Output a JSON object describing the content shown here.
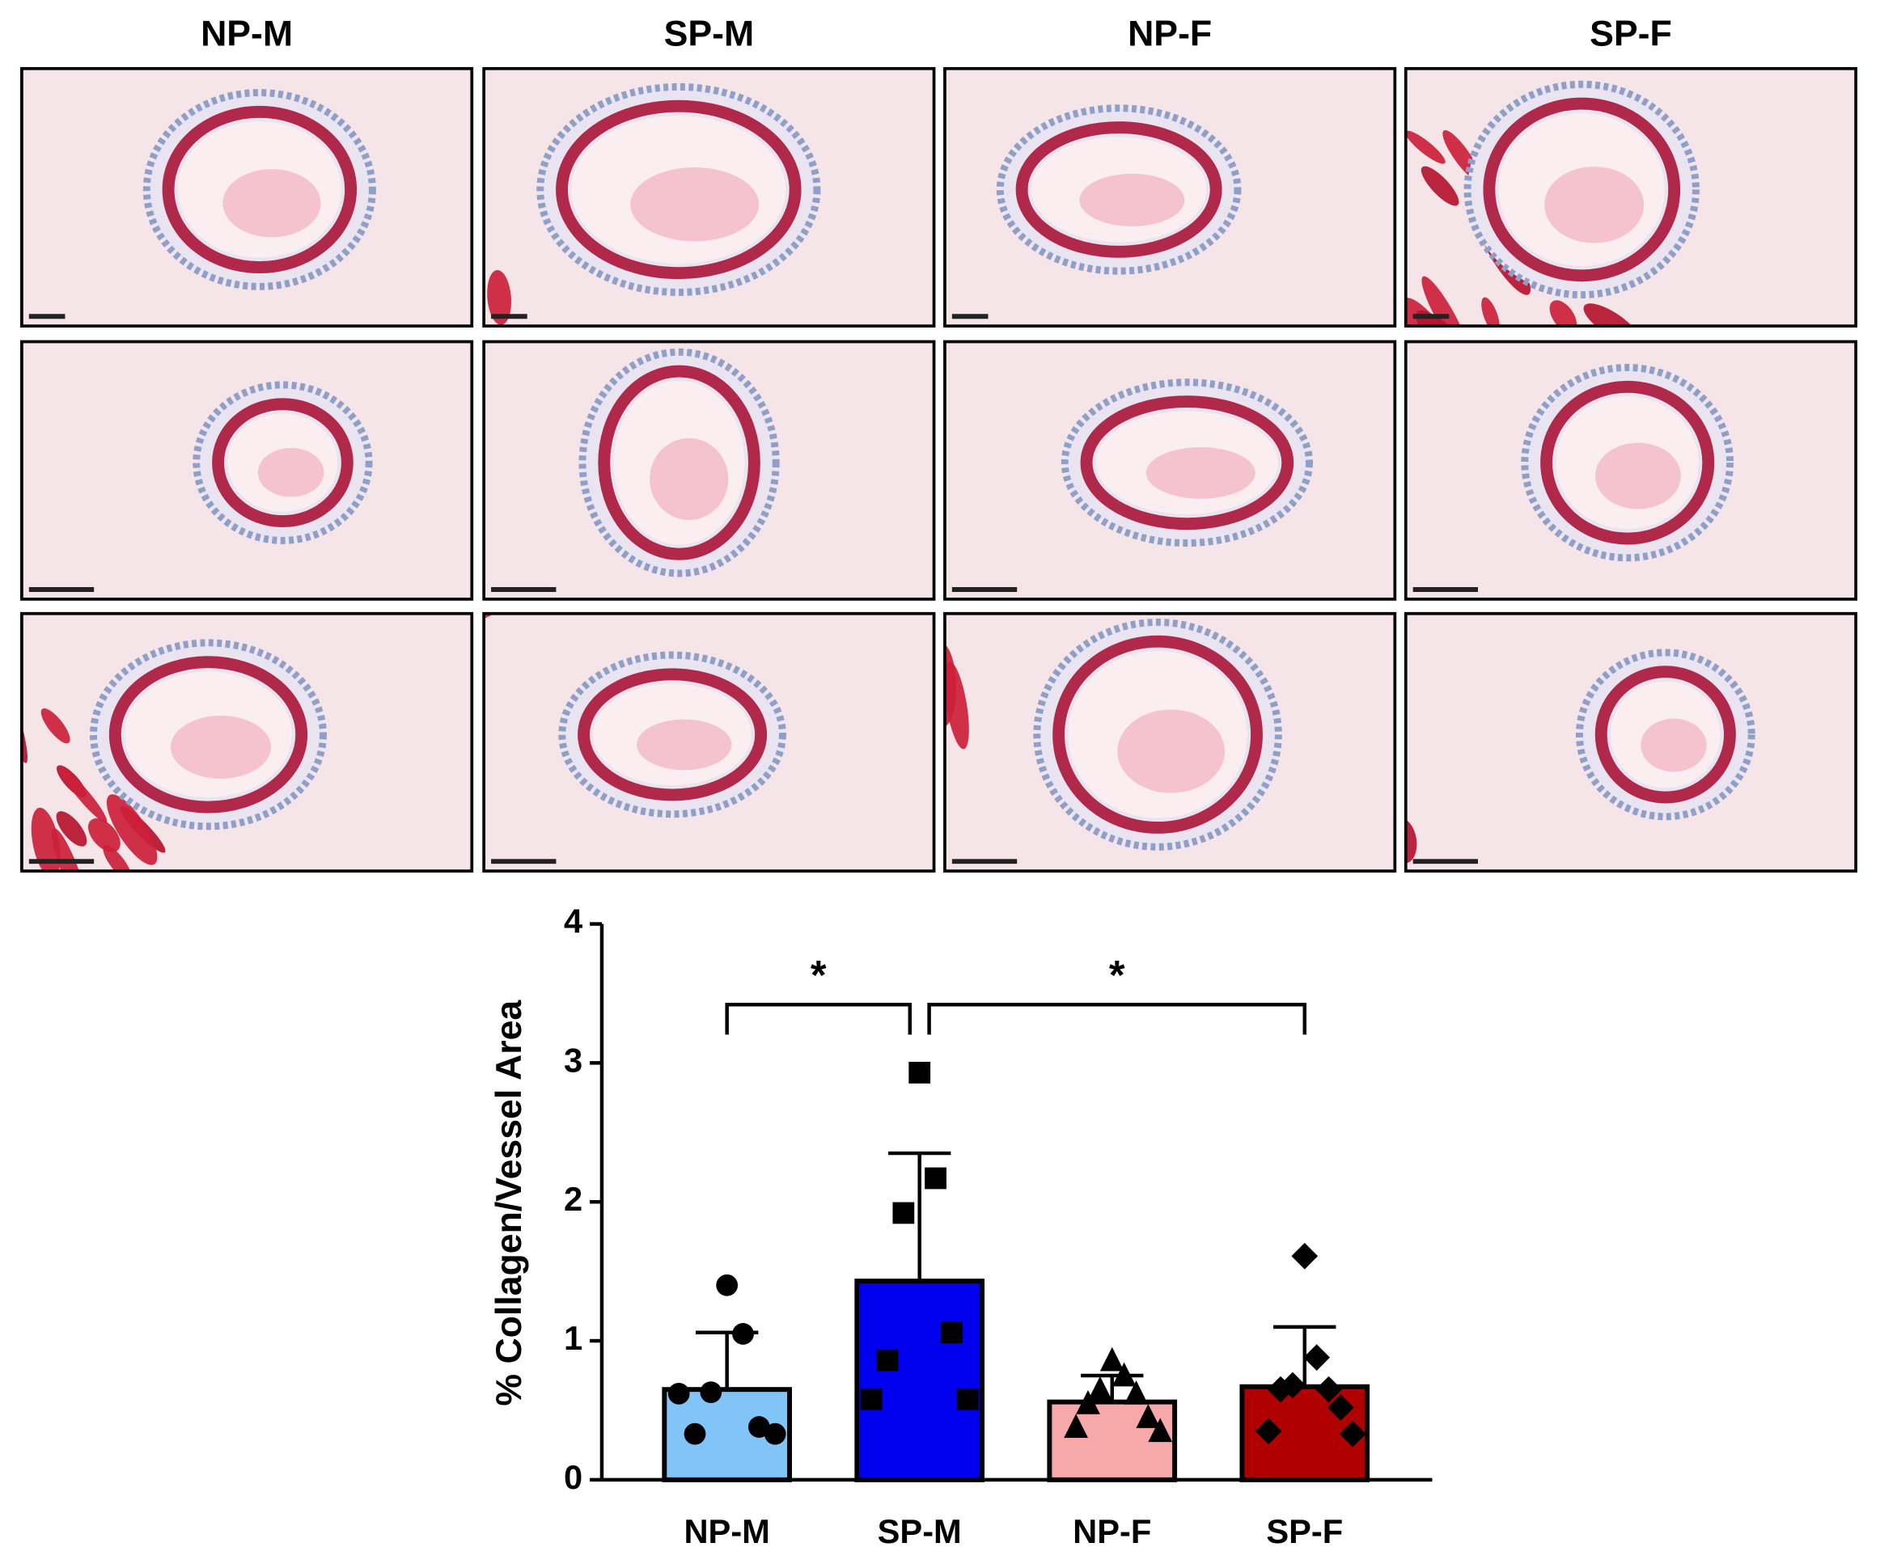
{
  "image_panels": {
    "columns": [
      "NP-M",
      "SP-M",
      "NP-F",
      "SP-F"
    ]
  },
  "chart_data": {
    "type": "bar",
    "ylabel": "% Collagen/Vessel Area",
    "categories": [
      "NP-M",
      "SP-M",
      "NP-F",
      "SP-F"
    ],
    "values": [
      0.65,
      1.43,
      0.56,
      0.67
    ],
    "errors": [
      0.41,
      0.92,
      0.19,
      0.43
    ],
    "colors": [
      "#80c4f8",
      "#0000ee",
      "#f7a8a8",
      "#b00000"
    ],
    "markers": [
      "circle",
      "square",
      "triangle",
      "diamond"
    ],
    "points": [
      [
        1.4,
        1.05,
        0.63,
        0.38,
        0.33,
        0.33,
        0.62
      ],
      [
        2.93,
        2.17,
        1.92,
        1.06,
        0.86,
        0.58,
        0.58
      ],
      [
        0.86,
        0.75,
        0.65,
        0.62,
        0.55,
        0.45,
        0.38,
        0.35
      ],
      [
        1.61,
        0.88,
        0.68,
        0.65,
        0.65,
        0.52,
        0.35,
        0.33
      ]
    ],
    "comparisons": [
      {
        "from": 0,
        "to": 1,
        "label": "*"
      },
      {
        "from": 1,
        "to": 3,
        "label": "*"
      }
    ],
    "ylim": [
      0,
      4
    ],
    "yticks": [
      0,
      1,
      2,
      3,
      4
    ]
  }
}
